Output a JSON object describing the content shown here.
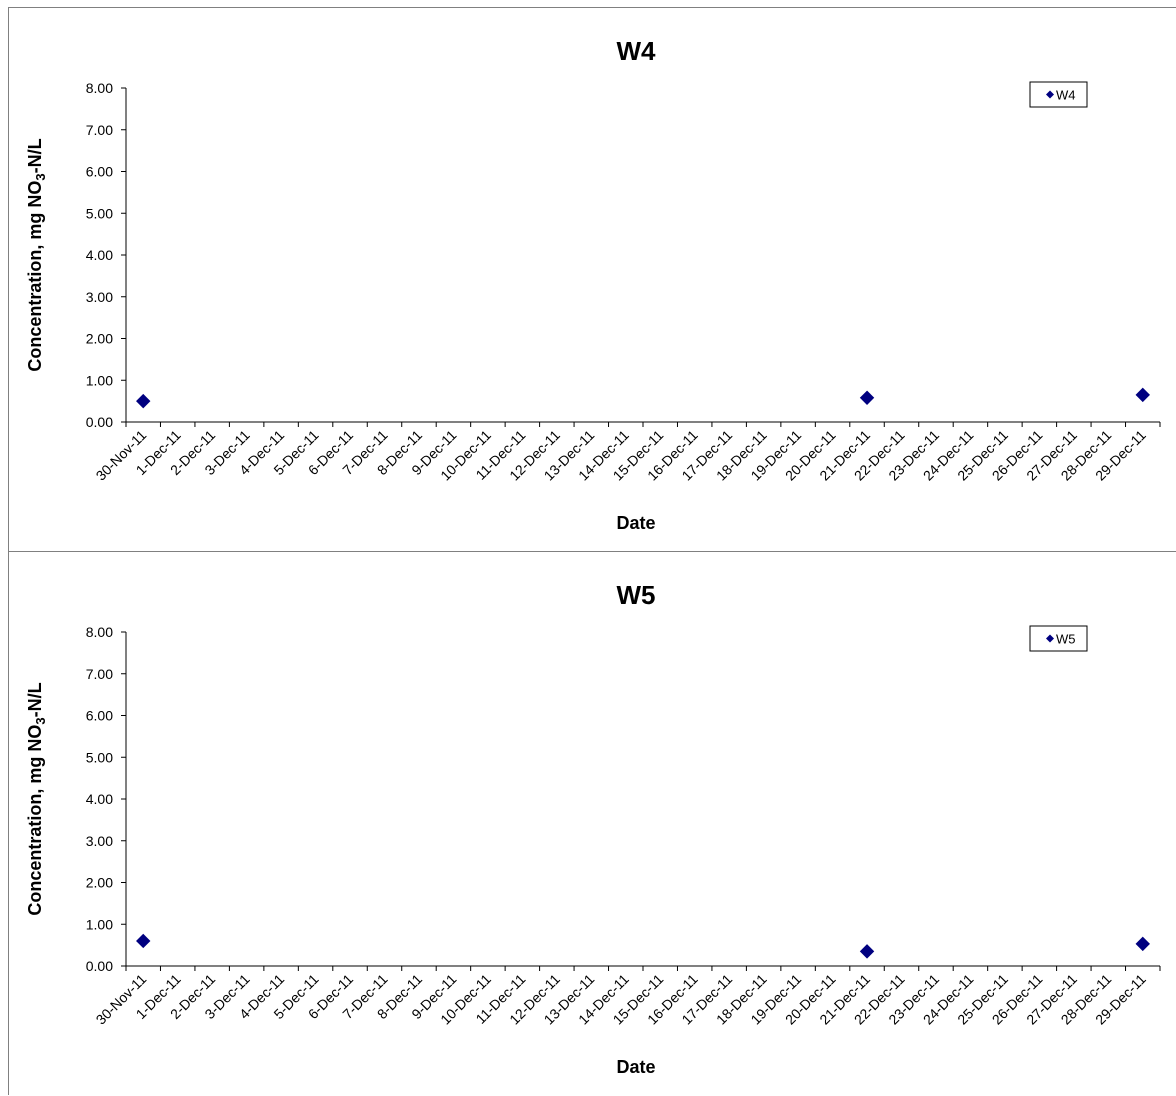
{
  "chart_data": [
    {
      "type": "scatter",
      "title": "W4",
      "xlabel": "Date",
      "ylabel": "Concentration, mg NO3-N/L",
      "ylabel_parts": [
        "Concentration, mg NO",
        "3",
        "-N/L"
      ],
      "x_categories": [
        "30-Nov-11",
        "1-Dec-11",
        "2-Dec-11",
        "3-Dec-11",
        "4-Dec-11",
        "5-Dec-11",
        "6-Dec-11",
        "7-Dec-11",
        "8-Dec-11",
        "9-Dec-11",
        "10-Dec-11",
        "11-Dec-11",
        "12-Dec-11",
        "13-Dec-11",
        "14-Dec-11",
        "15-Dec-11",
        "16-Dec-11",
        "17-Dec-11",
        "18-Dec-11",
        "19-Dec-11",
        "20-Dec-11",
        "21-Dec-11",
        "22-Dec-11",
        "23-Dec-11",
        "24-Dec-11",
        "25-Dec-11",
        "26-Dec-11",
        "27-Dec-11",
        "28-Dec-11",
        "29-Dec-11"
      ],
      "y_ticks": [
        "0.00",
        "1.00",
        "2.00",
        "3.00",
        "4.00",
        "5.00",
        "6.00",
        "7.00",
        "8.00"
      ],
      "ylim": [
        0,
        8
      ],
      "grid": false,
      "legend_position": "top-right",
      "series": [
        {
          "name": "W4",
          "color": "#000080",
          "marker": "diamond",
          "points": [
            {
              "x": "30-Nov-11",
              "y": 0.5
            },
            {
              "x": "21-Dec-11",
              "y": 0.58
            },
            {
              "x": "29-Dec-11",
              "y": 0.65
            }
          ]
        }
      ]
    },
    {
      "type": "scatter",
      "title": "W5",
      "xlabel": "Date",
      "ylabel": "Concentration, mg NO3-N/L",
      "ylabel_parts": [
        "Concentration, mg NO",
        "3",
        "-N/L"
      ],
      "x_categories": [
        "30-Nov-11",
        "1-Dec-11",
        "2-Dec-11",
        "3-Dec-11",
        "4-Dec-11",
        "5-Dec-11",
        "6-Dec-11",
        "7-Dec-11",
        "8-Dec-11",
        "9-Dec-11",
        "10-Dec-11",
        "11-Dec-11",
        "12-Dec-11",
        "13-Dec-11",
        "14-Dec-11",
        "15-Dec-11",
        "16-Dec-11",
        "17-Dec-11",
        "18-Dec-11",
        "19-Dec-11",
        "20-Dec-11",
        "21-Dec-11",
        "22-Dec-11",
        "23-Dec-11",
        "24-Dec-11",
        "25-Dec-11",
        "26-Dec-11",
        "27-Dec-11",
        "28-Dec-11",
        "29-Dec-11"
      ],
      "y_ticks": [
        "0.00",
        "1.00",
        "2.00",
        "3.00",
        "4.00",
        "5.00",
        "6.00",
        "7.00",
        "8.00"
      ],
      "ylim": [
        0,
        8
      ],
      "grid": false,
      "legend_position": "top-right",
      "series": [
        {
          "name": "W5",
          "color": "#000080",
          "marker": "diamond",
          "points": [
            {
              "x": "30-Nov-11",
              "y": 0.6
            },
            {
              "x": "21-Dec-11",
              "y": 0.35
            },
            {
              "x": "29-Dec-11",
              "y": 0.53
            }
          ]
        }
      ]
    }
  ]
}
